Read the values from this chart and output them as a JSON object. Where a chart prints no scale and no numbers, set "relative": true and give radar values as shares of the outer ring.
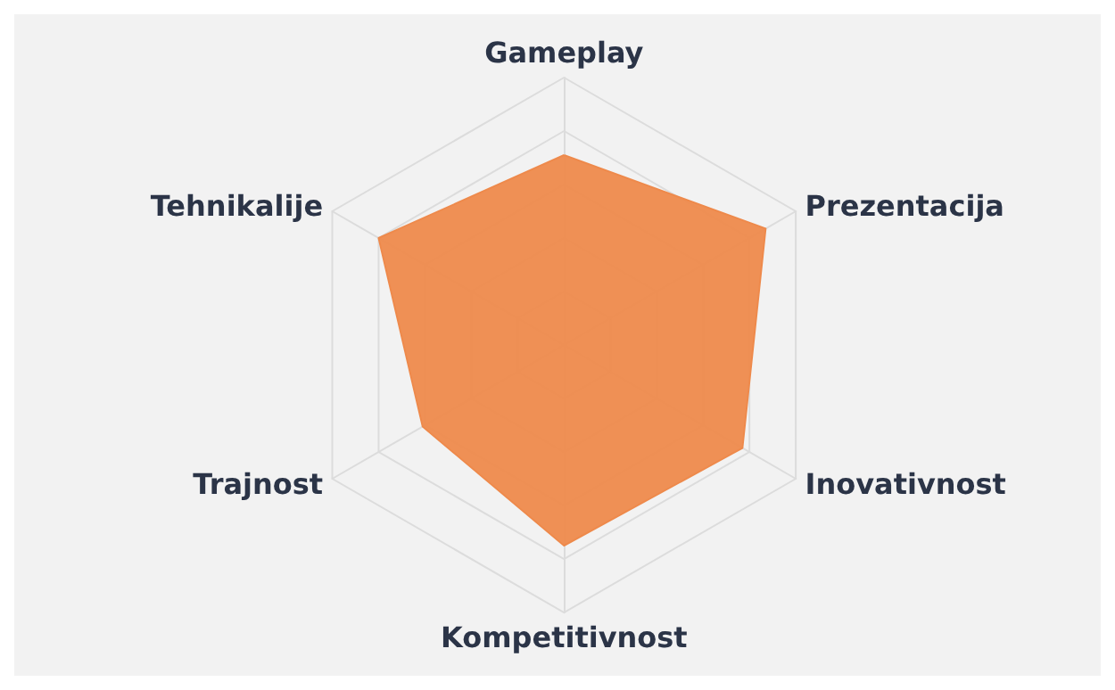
{
  "chart_data": {
    "type": "radar",
    "relative": true,
    "categories": [
      "Gameplay",
      "Prezentacija",
      "Inovativnost",
      "Kompetitivnost",
      "Trajnost",
      "Tehnikalije"
    ],
    "series": [
      {
        "color": "#ee8a4c",
        "values": [
          0.71,
          0.87,
          0.77,
          0.75,
          0.61,
          0.8
        ]
      }
    ]
  }
}
